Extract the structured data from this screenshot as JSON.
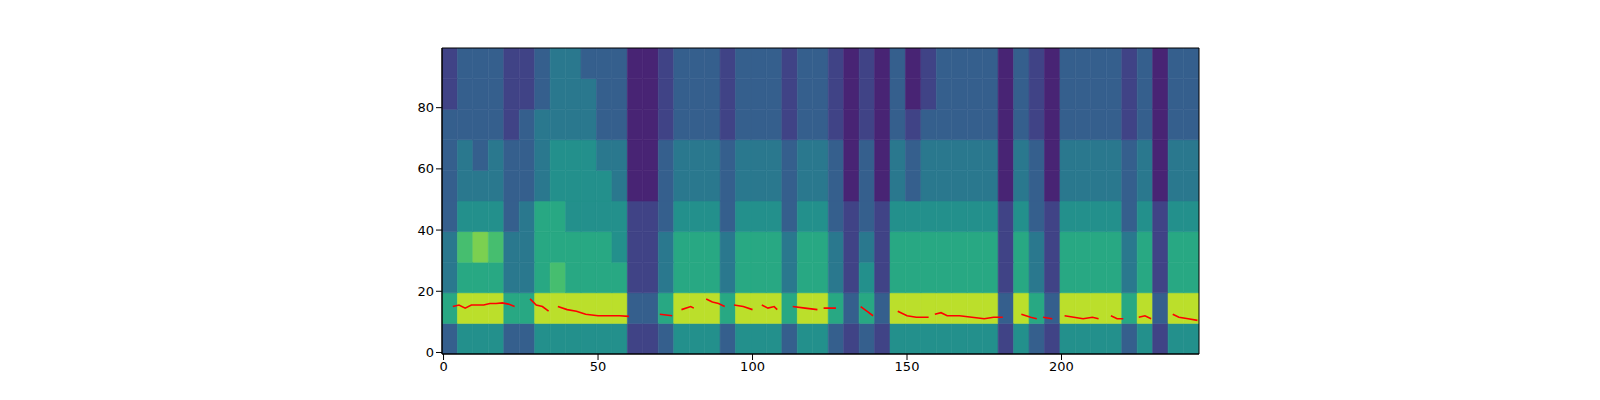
{
  "chart_data": {
    "type": "heatmap",
    "xlim": [
      -0.5,
      244.5
    ],
    "ylim": [
      -0.5,
      99.5
    ],
    "xticks": [
      0,
      50,
      100,
      150,
      200
    ],
    "yticks": [
      0,
      20,
      40,
      60,
      80
    ],
    "zlim": [
      0,
      10
    ],
    "x_edges": [
      -0.5,
      4.5,
      9.5,
      14.5,
      19.5,
      24.5,
      29.5,
      34.5,
      39.5,
      44.5,
      49.5,
      54.5,
      59.5,
      64.5,
      69.5,
      74.5,
      79.5,
      84.5,
      89.5,
      94.5,
      99.5,
      104.5,
      109.5,
      114.5,
      119.5,
      124.5,
      129.5,
      134.5,
      139.5,
      144.5,
      149.5,
      154.5,
      159.5,
      164.5,
      169.5,
      174.5,
      179.5,
      184.5,
      189.5,
      194.5,
      199.5,
      204.5,
      209.5,
      214.5,
      219.5,
      224.5,
      229.5,
      234.5,
      239.5,
      244.5
    ],
    "y_edges": [
      -0.5,
      9.5,
      19.5,
      29.5,
      39.5,
      49.5,
      59.5,
      69.5,
      79.5,
      89.5,
      99.5
    ],
    "cells": [
      [
        3,
        5,
        5,
        5,
        3,
        3,
        5,
        5,
        5,
        5,
        5,
        5,
        2,
        2,
        3,
        5,
        5,
        5,
        3,
        5,
        5,
        5,
        3,
        5,
        5,
        3,
        2,
        3,
        2,
        5,
        5,
        5,
        5,
        5,
        5,
        5,
        2,
        5,
        3,
        2,
        5,
        5,
        5,
        5,
        3,
        5,
        2,
        5,
        5
      ],
      [
        6,
        9,
        9,
        9,
        6,
        6,
        9,
        9,
        9,
        9,
        9,
        9,
        3,
        3,
        6,
        9,
        9,
        9,
        6,
        9,
        9,
        9,
        6,
        9,
        9,
        6,
        3,
        6,
        3,
        9,
        9,
        9,
        9,
        9,
        9,
        9,
        3,
        9,
        6,
        3,
        9,
        9,
        9,
        9,
        6,
        9,
        3,
        9,
        9
      ],
      [
        4,
        6,
        6,
        6,
        4,
        4,
        6,
        7,
        6,
        6,
        6,
        6,
        2,
        2,
        4,
        6,
        6,
        6,
        4,
        6,
        6,
        6,
        4,
        6,
        6,
        4,
        2,
        5,
        2,
        6,
        6,
        6,
        6,
        6,
        6,
        6,
        2,
        6,
        4,
        2,
        6,
        6,
        6,
        6,
        4,
        6,
        2,
        6,
        6
      ],
      [
        4,
        7,
        8,
        7,
        4,
        4,
        6,
        6,
        6,
        6,
        6,
        5,
        2,
        2,
        4,
        6,
        6,
        6,
        4,
        6,
        6,
        6,
        4,
        6,
        6,
        4,
        2,
        4,
        2,
        6,
        6,
        6,
        6,
        6,
        6,
        6,
        2,
        6,
        4,
        2,
        6,
        6,
        6,
        6,
        4,
        6,
        2,
        6,
        6
      ],
      [
        3,
        5,
        5,
        5,
        3,
        4,
        6,
        6,
        5,
        5,
        5,
        5,
        2,
        2,
        3,
        5,
        5,
        5,
        3,
        5,
        5,
        5,
        3,
        5,
        5,
        3,
        2,
        3,
        2,
        5,
        5,
        5,
        5,
        5,
        5,
        5,
        2,
        5,
        3,
        2,
        5,
        5,
        5,
        5,
        3,
        5,
        2,
        5,
        5
      ],
      [
        3,
        4,
        4,
        4,
        3,
        3,
        4,
        5,
        5,
        5,
        5,
        4,
        1,
        1,
        3,
        4,
        4,
        4,
        3,
        4,
        4,
        4,
        3,
        4,
        4,
        3,
        1,
        3,
        1,
        4,
        3,
        4,
        4,
        4,
        4,
        4,
        1,
        4,
        3,
        1,
        4,
        4,
        4,
        4,
        3,
        4,
        1,
        4,
        4
      ],
      [
        3,
        4,
        3,
        4,
        3,
        3,
        4,
        5,
        5,
        5,
        4,
        4,
        1,
        1,
        3,
        4,
        4,
        4,
        3,
        4,
        4,
        4,
        3,
        4,
        4,
        3,
        1,
        3,
        1,
        4,
        3,
        4,
        4,
        4,
        4,
        4,
        1,
        4,
        3,
        1,
        4,
        4,
        4,
        4,
        3,
        4,
        1,
        4,
        4
      ],
      [
        3,
        3,
        3,
        3,
        2,
        3,
        4,
        4,
        4,
        4,
        3,
        3,
        1,
        1,
        2,
        3,
        3,
        3,
        2,
        3,
        3,
        3,
        2,
        3,
        3,
        2,
        1,
        2,
        1,
        3,
        2,
        3,
        3,
        3,
        3,
        3,
        1,
        3,
        2,
        1,
        3,
        3,
        3,
        3,
        2,
        3,
        1,
        3,
        3
      ],
      [
        2,
        3,
        3,
        3,
        2,
        2,
        3,
        4,
        4,
        4,
        3,
        3,
        1,
        1,
        2,
        3,
        3,
        3,
        2,
        3,
        3,
        3,
        2,
        3,
        3,
        2,
        1,
        2,
        1,
        3,
        1,
        2,
        3,
        3,
        3,
        3,
        1,
        3,
        2,
        1,
        3,
        3,
        3,
        3,
        2,
        3,
        1,
        3,
        3
      ],
      [
        2,
        3,
        3,
        3,
        2,
        2,
        3,
        4,
        4,
        3,
        3,
        3,
        1,
        1,
        2,
        3,
        3,
        3,
        2,
        3,
        3,
        3,
        2,
        3,
        3,
        2,
        1,
        2,
        1,
        3,
        1,
        2,
        3,
        3,
        3,
        3,
        1,
        3,
        2,
        1,
        3,
        3,
        3,
        3,
        2,
        3,
        1,
        3,
        3
      ]
    ],
    "series": [
      {
        "type": "line",
        "color": "#ff0000",
        "x": [
          3,
          5,
          7,
          9,
          11,
          13,
          15,
          17,
          19,
          21,
          23,
          25,
          28,
          30,
          32,
          34,
          35,
          37,
          40,
          43,
          46,
          50,
          54,
          57,
          60,
          65,
          70,
          74,
          76,
          77,
          80,
          81,
          83,
          85,
          87,
          89,
          91,
          92,
          94,
          97,
          100,
          101,
          103,
          105,
          107,
          108,
          110,
          113,
          117,
          121,
          122,
          123,
          127,
          130,
          135,
          137,
          139,
          143,
          147,
          150,
          153,
          157,
          158,
          159,
          161,
          163,
          167,
          171,
          175,
          178,
          181,
          184,
          187,
          190,
          192,
          193,
          194,
          197,
          199,
          201,
          204,
          207,
          210,
          212,
          214,
          216,
          218,
          220,
          222,
          225,
          227,
          229,
          232,
          236,
          238,
          241,
          244
        ],
        "values": [
          15,
          15.5,
          14.5,
          15.5,
          15.5,
          15.5,
          16,
          16,
          16.2,
          15.8,
          15,
          null,
          17.5,
          15.5,
          15,
          13.5,
          null,
          15,
          14,
          13.5,
          12.5,
          12,
          12,
          12,
          11.8,
          null,
          12.5,
          12,
          null,
          14,
          15,
          14.5,
          null,
          17.5,
          16.5,
          16,
          15,
          null,
          15.5,
          15,
          14,
          null,
          15.5,
          14.5,
          15,
          14,
          null,
          15,
          14.5,
          14,
          null,
          14.5,
          14.5,
          null,
          15,
          13.5,
          12,
          null,
          13.5,
          12,
          11.5,
          11.5,
          null,
          12.5,
          13,
          12,
          12,
          11.5,
          11,
          11.5,
          11.5,
          null,
          12.5,
          11.5,
          11,
          null,
          11.5,
          11,
          null,
          12,
          11.5,
          11,
          11.5,
          11,
          null,
          12,
          11,
          11,
          null,
          11.5,
          12,
          11,
          null,
          12.5,
          11.5,
          11,
          10.5
        ]
      }
    ]
  }
}
